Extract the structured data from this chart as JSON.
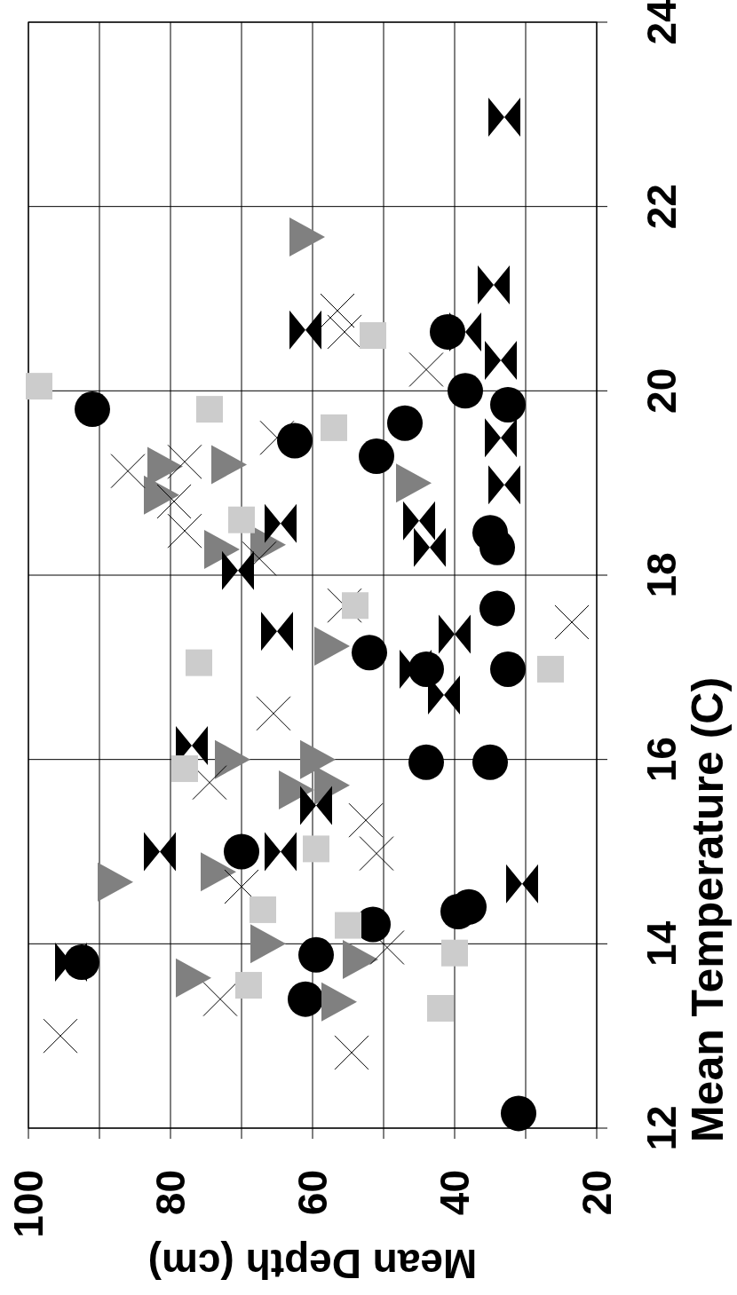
{
  "chart_data": {
    "type": "scatter",
    "xlabel": "Mean Depth (cm)",
    "y2label": "Mean Temperature (C)",
    "xlim": [
      100,
      20
    ],
    "xticks": [
      100,
      {
        "value": 90,
        "label": null
      },
      80,
      {
        "value": 70,
        "label": null
      },
      60,
      {
        "value": 50,
        "label": null
      },
      40,
      {
        "value": 30,
        "label": null
      },
      20
    ],
    "y2lim": [
      12,
      24
    ],
    "y2ticks": [
      12,
      14,
      16,
      18,
      20,
      22,
      24
    ],
    "grid": true,
    "series": [
      {
        "axis": "y2",
        "color": "#000000",
        "marker": "circle",
        "x": [
          31,
          61,
          92.5,
          59.5,
          51.5,
          39.5,
          38,
          70,
          44,
          35,
          44,
          32.5,
          52,
          34,
          34,
          35,
          51,
          62.5,
          47,
          91,
          32.5,
          38.5,
          41
        ],
        "values": [
          12.16,
          13.4,
          13.8,
          13.88,
          14.21,
          14.35,
          14.4,
          15.0,
          15.97,
          15.97,
          16.98,
          16.98,
          17.16,
          17.64,
          18.3,
          18.46,
          19.29,
          19.46,
          19.65,
          19.8,
          19.85,
          20.0,
          20.64
        ]
      },
      {
        "axis": "y2",
        "color": "#808080",
        "marker": "triangle",
        "x": [
          56.5,
          77,
          53.5,
          66.5,
          88,
          73.5,
          62.5,
          57.5,
          71.5,
          59.5,
          57.5,
          73,
          66.5,
          81.5,
          46,
          81,
          72,
          61
        ],
        "values": [
          13.37,
          13.63,
          13.83,
          14.0,
          14.67,
          14.78,
          15.67,
          15.72,
          16.0,
          16.0,
          17.23,
          18.28,
          18.33,
          18.87,
          19.0,
          19.18,
          19.2,
          21.67
        ]
      },
      {
        "axis": "y2",
        "color": "#000000",
        "x": [
          94,
          30.5,
          81.5,
          64.5,
          59.5,
          77,
          41.5,
          45.5,
          40,
          65,
          70.5,
          43.5,
          64.5,
          45,
          33,
          33.5,
          33.5,
          38.5,
          61,
          34.5,
          33
        ],
        "values": [
          13.8,
          14.65,
          15.0,
          15.0,
          15.5,
          16.15,
          16.7,
          16.98,
          17.36,
          17.39,
          18.05,
          18.3,
          18.56,
          18.59,
          18.98,
          19.49,
          20.33,
          20.64,
          20.66,
          21.15,
          22.97
        ]
      },
      {
        "axis": "y2",
        "color": "#000000",
        "marker": "cross",
        "x": [
          54.5,
          95.5,
          73,
          49.5,
          70,
          51,
          52.5,
          74.5,
          65.5,
          23.5,
          55.5,
          67.5,
          78,
          79.5,
          86,
          78,
          65,
          44,
          55.5,
          56.5
        ],
        "values": [
          12.82,
          13.0,
          13.4,
          13.96,
          14.62,
          14.98,
          15.34,
          15.75,
          16.5,
          17.49,
          17.67,
          18.18,
          18.48,
          18.8,
          19.13,
          19.23,
          19.49,
          20.23,
          20.64,
          20.87
        ]
      },
      {
        "axis": "y2",
        "color": "#cccccc",
        "marker": "square",
        "x": [
          42,
          69,
          40,
          55,
          67,
          59.5,
          78,
          26.5,
          76,
          54,
          70,
          57,
          74.5,
          98.5,
          51.5
        ],
        "values": [
          13.3,
          13.55,
          13.9,
          14.2,
          14.37,
          15.03,
          15.9,
          16.98,
          17.05,
          17.67,
          18.6,
          19.6,
          19.8,
          20.05,
          20.6
        ]
      }
    ]
  }
}
